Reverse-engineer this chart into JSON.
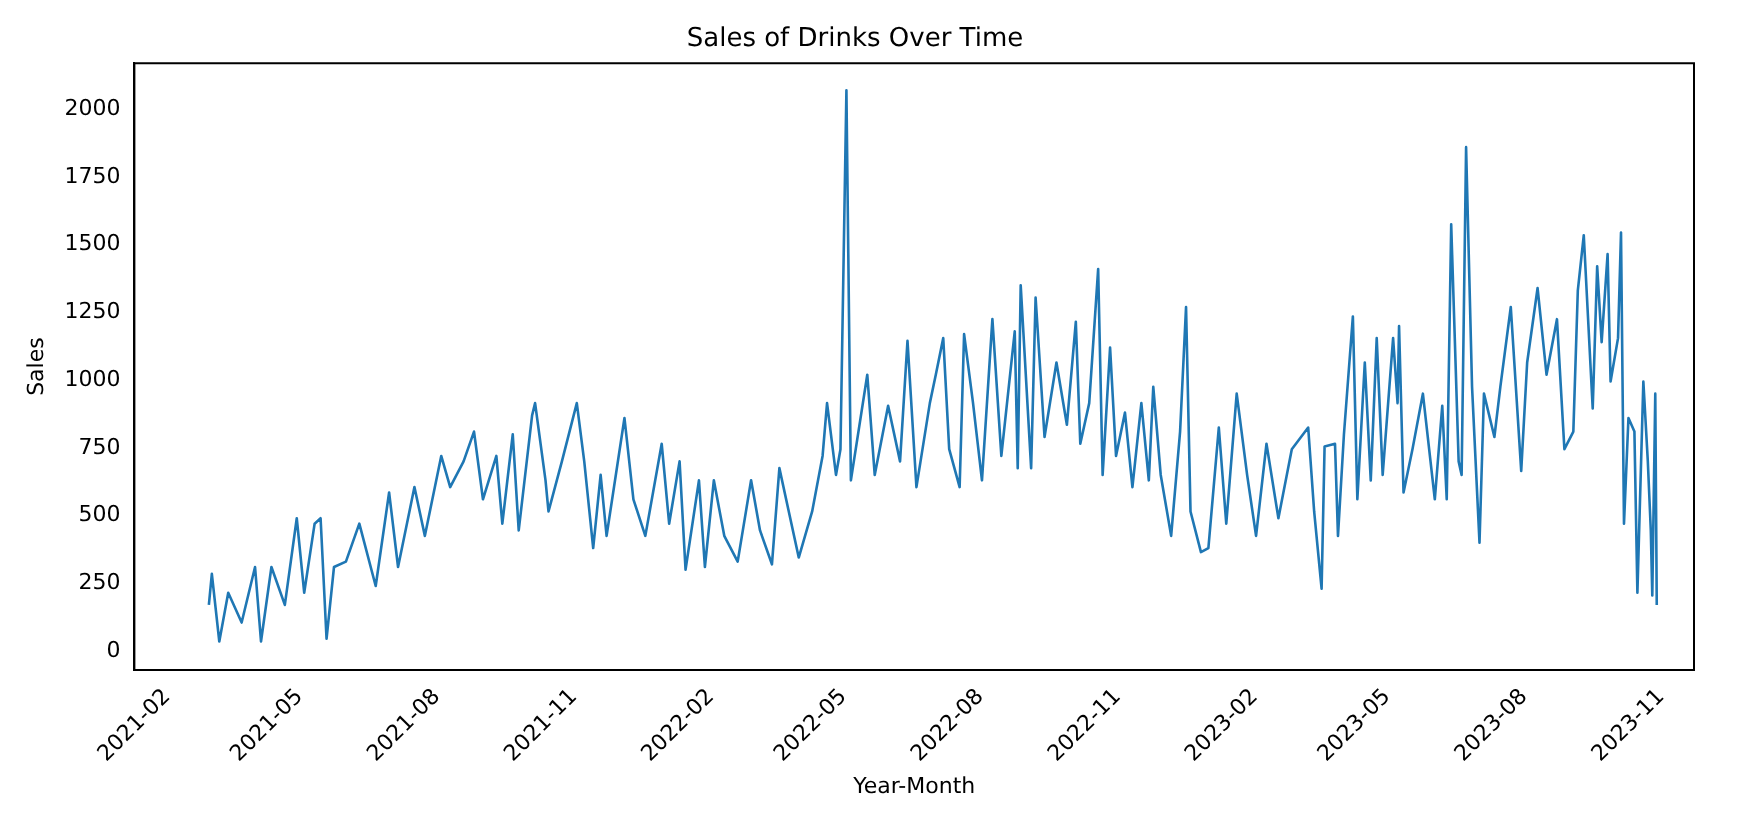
{
  "chart_data": {
    "type": "line",
    "title": "Sales of Drinks Over Time",
    "xlabel": "Year-Month",
    "ylabel": "Sales",
    "x": [
      "2021-03-01",
      "2021-03-03",
      "2021-03-08",
      "2021-03-14",
      "2021-03-23",
      "2021-04-01",
      "2021-04-05",
      "2021-04-12",
      "2021-04-21",
      "2021-04-29",
      "2021-05-04",
      "2021-05-11",
      "2021-05-15",
      "2021-05-19",
      "2021-05-24",
      "2021-06-01",
      "2021-06-10",
      "2021-06-21",
      "2021-06-30",
      "2021-07-06",
      "2021-07-17",
      "2021-07-24",
      "2021-08-04",
      "2021-08-10",
      "2021-08-19",
      "2021-08-26",
      "2021-09-01",
      "2021-09-10",
      "2021-09-14",
      "2021-09-21",
      "2021-09-25",
      "2021-10-04",
      "2021-10-06",
      "2021-10-13",
      "2021-10-15",
      "2021-10-24",
      "2021-11-03",
      "2021-11-08",
      "2021-11-14",
      "2021-11-19",
      "2021-11-23",
      "2021-12-05",
      "2021-12-11",
      "2021-12-19",
      "2021-12-30",
      "2022-01-04",
      "2022-01-11",
      "2022-01-15",
      "2022-01-24",
      "2022-01-28",
      "2022-02-03",
      "2022-02-10",
      "2022-02-19",
      "2022-02-28",
      "2022-03-06",
      "2022-03-14",
      "2022-03-19",
      "2022-04-01",
      "2022-04-10",
      "2022-04-17",
      "2022-04-20",
      "2022-04-26",
      "2022-04-29",
      "2022-05-03",
      "2022-05-06",
      "2022-05-17",
      "2022-05-22",
      "2022-05-31",
      "2022-06-08",
      "2022-06-13",
      "2022-06-19",
      "2022-06-28",
      "2022-07-02",
      "2022-07-07",
      "2022-07-11",
      "2022-07-18",
      "2022-07-21",
      "2022-07-27",
      "2022-08-02",
      "2022-08-09",
      "2022-08-15",
      "2022-08-24",
      "2022-08-26",
      "2022-08-28",
      "2022-09-04",
      "2022-09-07",
      "2022-09-13",
      "2022-09-21",
      "2022-09-28",
      "2022-10-04",
      "2022-10-07",
      "2022-10-13",
      "2022-10-19",
      "2022-10-22",
      "2022-10-27",
      "2022-10-31",
      "2022-11-06",
      "2022-11-11",
      "2022-11-17",
      "2022-11-22",
      "2022-11-25",
      "2022-11-30",
      "2022-12-07",
      "2022-12-13",
      "2022-12-17",
      "2022-12-20",
      "2022-12-27",
      "2023-01-01",
      "2023-01-08",
      "2023-01-13",
      "2023-01-20",
      "2023-01-27",
      "2023-02-02",
      "2023-02-09",
      "2023-02-17",
      "2023-02-26",
      "2023-03-09",
      "2023-03-13",
      "2023-03-18",
      "2023-03-20",
      "2023-03-27",
      "2023-03-29",
      "2023-04-02",
      "2023-04-08",
      "2023-04-11",
      "2023-04-16",
      "2023-04-20",
      "2023-04-24",
      "2023-04-28",
      "2023-05-05",
      "2023-05-08",
      "2023-05-09",
      "2023-05-12",
      "2023-05-18",
      "2023-05-25",
      "2023-06-02",
      "2023-06-07",
      "2023-06-10",
      "2023-06-13",
      "2023-06-18",
      "2023-06-20",
      "2023-06-23",
      "2023-06-27",
      "2023-07-02",
      "2023-07-05",
      "2023-07-12",
      "2023-07-16",
      "2023-07-23",
      "2023-07-30",
      "2023-08-03",
      "2023-08-10",
      "2023-08-16",
      "2023-08-23",
      "2023-08-28",
      "2023-09-03",
      "2023-09-06",
      "2023-09-10",
      "2023-09-16",
      "2023-09-19",
      "2023-09-22",
      "2023-09-26",
      "2023-09-28",
      "2023-10-03",
      "2023-10-05",
      "2023-10-07",
      "2023-10-10",
      "2023-10-14",
      "2023-10-16",
      "2023-10-20",
      "2023-10-23",
      "2023-10-25",
      "2023-10-26",
      "2023-10-28",
      "2023-10-29"
    ],
    "series": [
      {
        "color": "#1f77b4",
        "values": [
          170,
          285,
          35,
          215,
          105,
          310,
          35,
          310,
          170,
          490,
          215,
          470,
          490,
          45,
          310,
          330,
          470,
          240,
          585,
          310,
          605,
          425,
          720,
          605,
          700,
          810,
          560,
          720,
          470,
          800,
          445,
          870,
          915,
          630,
          515,
          700,
          915,
          700,
          380,
          650,
          425,
          860,
          560,
          425,
          765,
          470,
          700,
          300,
          630,
          310,
          630,
          425,
          330,
          630,
          445,
          320,
          675,
          345,
          515,
          720,
          915,
          650,
          745,
          2070,
          630,
          1020,
          650,
          905,
          700,
          1145,
          605,
          915,
          1020,
          1155,
          745,
          605,
          1170,
          915,
          630,
          1225,
          720,
          1180,
          675,
          1350,
          675,
          1305,
          790,
          1065,
          835,
          1215,
          765,
          915,
          1410,
          650,
          1120,
          720,
          880,
          605,
          915,
          630,
          975,
          650,
          425,
          810,
          1270,
          515,
          365,
          380,
          825,
          470,
          950,
          650,
          425,
          765,
          490,
          745,
          825,
          515,
          230,
          755,
          765,
          425,
          800,
          1235,
          560,
          1065,
          630,
          1155,
          650,
          1155,
          915,
          1200,
          585,
          745,
          950,
          560,
          905,
          560,
          1575,
          700,
          650,
          1860,
          975,
          400,
          950,
          790,
          975,
          1270,
          665,
          1065,
          1340,
          1020,
          1225,
          745,
          810,
          1330,
          1535,
          895,
          1420,
          1140,
          1465,
          995,
          1155,
          1545,
          470,
          860,
          810,
          215,
          995,
          700,
          445,
          205,
          950,
          170
        ]
      }
    ],
    "xlim": [
      "2021-01-10",
      "2023-11-23"
    ],
    "ylim": [
      -70,
      2170
    ],
    "xticks": [
      "2021-02",
      "2021-05",
      "2021-08",
      "2021-11",
      "2022-02",
      "2022-05",
      "2022-08",
      "2022-11",
      "2023-02",
      "2023-05",
      "2023-08",
      "2023-11"
    ],
    "yticks": [
      0,
      250,
      500,
      750,
      1000,
      1250,
      1500,
      1750,
      2000
    ],
    "grid": false,
    "legend": false,
    "marker": "none",
    "line_style": "solid"
  }
}
